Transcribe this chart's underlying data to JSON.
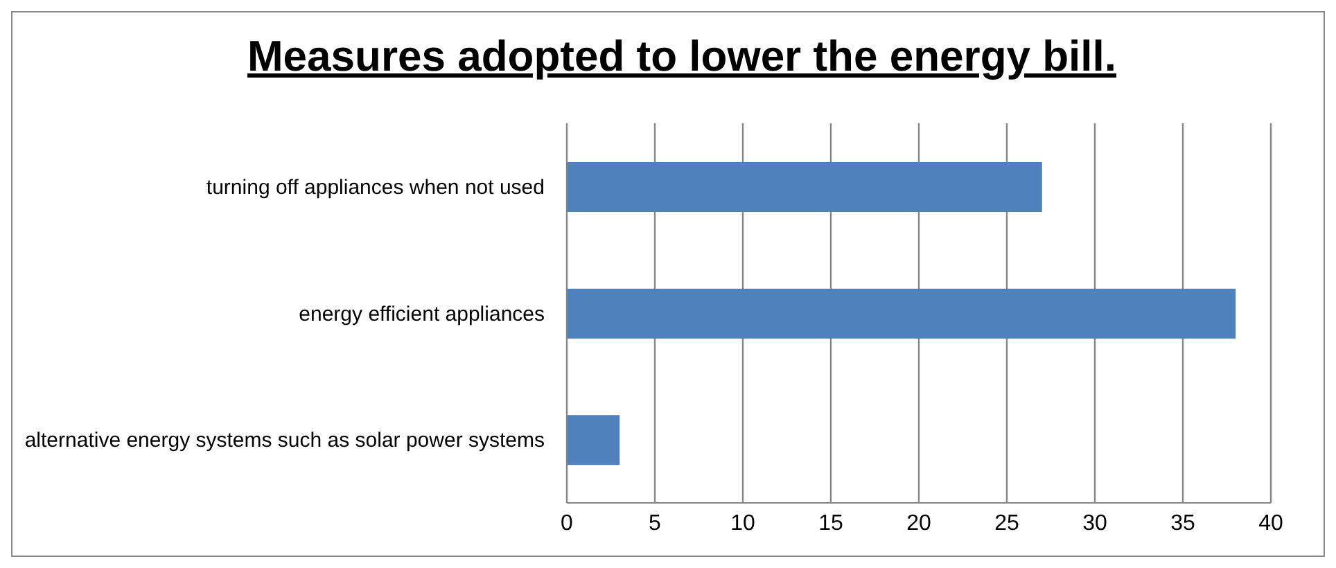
{
  "chart_data": {
    "type": "bar",
    "orientation": "horizontal",
    "title": "Measures adopted to lower the energy bill.",
    "categories": [
      "turning off appliances when not used",
      "energy efficient appliances",
      "alternative energy systems such as solar power systems"
    ],
    "values": [
      27,
      38,
      3
    ],
    "color": "#4f81bd",
    "xlim": [
      0,
      40
    ],
    "xticks": [
      0,
      5,
      10,
      15,
      20,
      25,
      30,
      35,
      40
    ],
    "grid": "x",
    "legend": false
  }
}
